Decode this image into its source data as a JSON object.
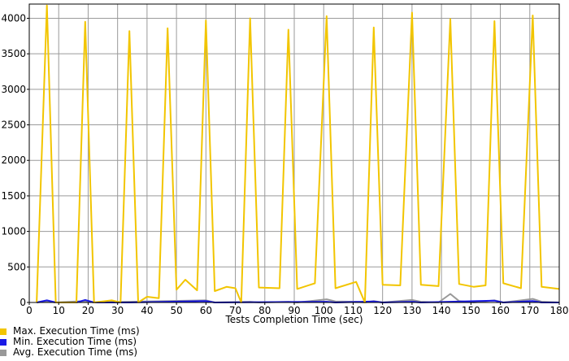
{
  "chart_data": {
    "type": "line",
    "xlabel": "Tests Completion Time (sec)",
    "ylabel": "",
    "xlim": [
      0,
      180
    ],
    "ylim": [
      0,
      4200
    ],
    "xticks": [
      0,
      10,
      20,
      30,
      40,
      50,
      60,
      70,
      80,
      90,
      100,
      110,
      120,
      130,
      140,
      150,
      160,
      170,
      180
    ],
    "yticks": [
      0,
      500,
      1000,
      1500,
      2000,
      2500,
      3000,
      3500,
      4000
    ],
    "grid": true,
    "legend_position": "bottom-left",
    "series": [
      {
        "name": "Max. Execution Time (ms)",
        "color": "#f2c500",
        "points": [
          [
            2.5,
            0
          ],
          [
            6,
            4180
          ],
          [
            9,
            0
          ],
          [
            16,
            0
          ],
          [
            19,
            3950
          ],
          [
            22,
            0
          ],
          [
            28,
            30
          ],
          [
            31,
            0
          ],
          [
            34,
            3820
          ],
          [
            37,
            0
          ],
          [
            40,
            80
          ],
          [
            44,
            60
          ],
          [
            47,
            3860
          ],
          [
            50,
            180
          ],
          [
            53,
            320
          ],
          [
            57,
            170
          ],
          [
            60,
            3970
          ],
          [
            63,
            160
          ],
          [
            67,
            220
          ],
          [
            70,
            200
          ],
          [
            72,
            0
          ],
          [
            75,
            4000
          ],
          [
            78,
            210
          ],
          [
            85,
            200
          ],
          [
            88,
            3840
          ],
          [
            91,
            190
          ],
          [
            97,
            270
          ],
          [
            101,
            4030
          ],
          [
            104,
            200
          ],
          [
            111,
            290
          ],
          [
            114,
            0
          ],
          [
            117,
            3870
          ],
          [
            120,
            250
          ],
          [
            126,
            240
          ],
          [
            130,
            4080
          ],
          [
            133,
            250
          ],
          [
            139,
            230
          ],
          [
            143,
            3990
          ],
          [
            146,
            260
          ],
          [
            151,
            220
          ],
          [
            155,
            240
          ],
          [
            158,
            3960
          ],
          [
            161,
            270
          ],
          [
            167,
            200
          ],
          [
            171,
            4040
          ],
          [
            174,
            220
          ],
          [
            180,
            190
          ]
        ]
      },
      {
        "name": "Min. Execution Time (ms)",
        "color": "#1a1ae6",
        "points": [
          [
            2.5,
            0
          ],
          [
            6,
            30
          ],
          [
            9,
            0
          ],
          [
            16,
            0
          ],
          [
            19,
            35
          ],
          [
            22,
            0
          ],
          [
            34,
            0
          ],
          [
            60,
            20
          ],
          [
            63,
            0
          ],
          [
            101,
            10
          ],
          [
            104,
            0
          ],
          [
            117,
            15
          ],
          [
            120,
            0
          ],
          [
            130,
            10
          ],
          [
            133,
            0
          ],
          [
            158,
            25
          ],
          [
            161,
            0
          ],
          [
            171,
            20
          ],
          [
            174,
            0
          ],
          [
            180,
            0
          ]
        ]
      },
      {
        "name": "Avg. Execution Time (ms)",
        "color": "#999999",
        "points": [
          [
            2.5,
            0
          ],
          [
            6,
            15
          ],
          [
            9,
            0
          ],
          [
            19,
            20
          ],
          [
            22,
            0
          ],
          [
            60,
            30
          ],
          [
            63,
            0
          ],
          [
            75,
            10
          ],
          [
            78,
            0
          ],
          [
            88,
            10
          ],
          [
            91,
            0
          ],
          [
            101,
            45
          ],
          [
            104,
            15
          ],
          [
            111,
            10
          ],
          [
            114,
            0
          ],
          [
            117,
            20
          ],
          [
            120,
            0
          ],
          [
            130,
            35
          ],
          [
            133,
            10
          ],
          [
            139,
            0
          ],
          [
            143,
            120
          ],
          [
            146,
            20
          ],
          [
            151,
            0
          ],
          [
            158,
            30
          ],
          [
            161,
            0
          ],
          [
            171,
            50
          ],
          [
            174,
            10
          ],
          [
            180,
            0
          ]
        ]
      }
    ]
  }
}
